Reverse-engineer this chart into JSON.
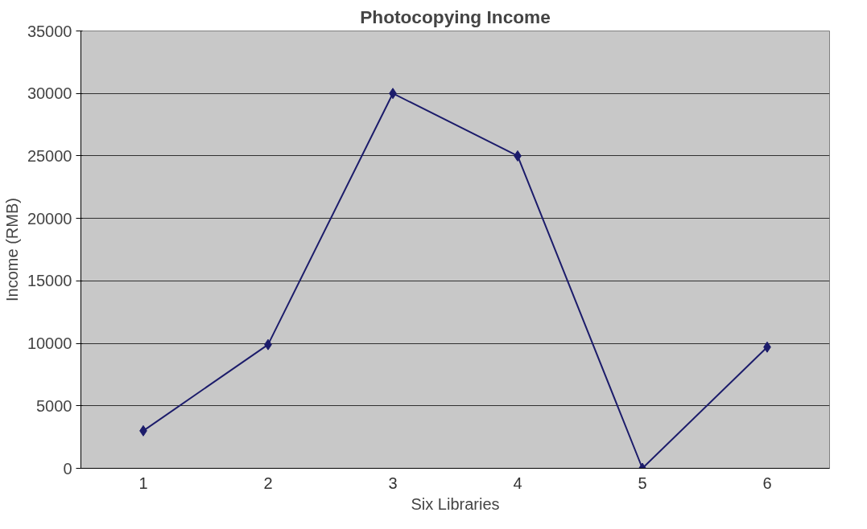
{
  "chart_data": {
    "type": "line",
    "title": "Photocopying Income",
    "xlabel": "Six Libraries",
    "ylabel": "Income (RMB)",
    "categories": [
      "1",
      "2",
      "3",
      "4",
      "5",
      "6"
    ],
    "series": [
      {
        "color": "#1c1c6b",
        "values": [
          3000,
          9900,
          30000,
          25000,
          0,
          9700
        ]
      }
    ],
    "ylim": [
      0,
      35000
    ],
    "yticks": [
      0,
      5000,
      10000,
      15000,
      20000,
      25000,
      30000,
      35000
    ],
    "grid": "y",
    "marker": "diamond",
    "line_style": "solid"
  }
}
